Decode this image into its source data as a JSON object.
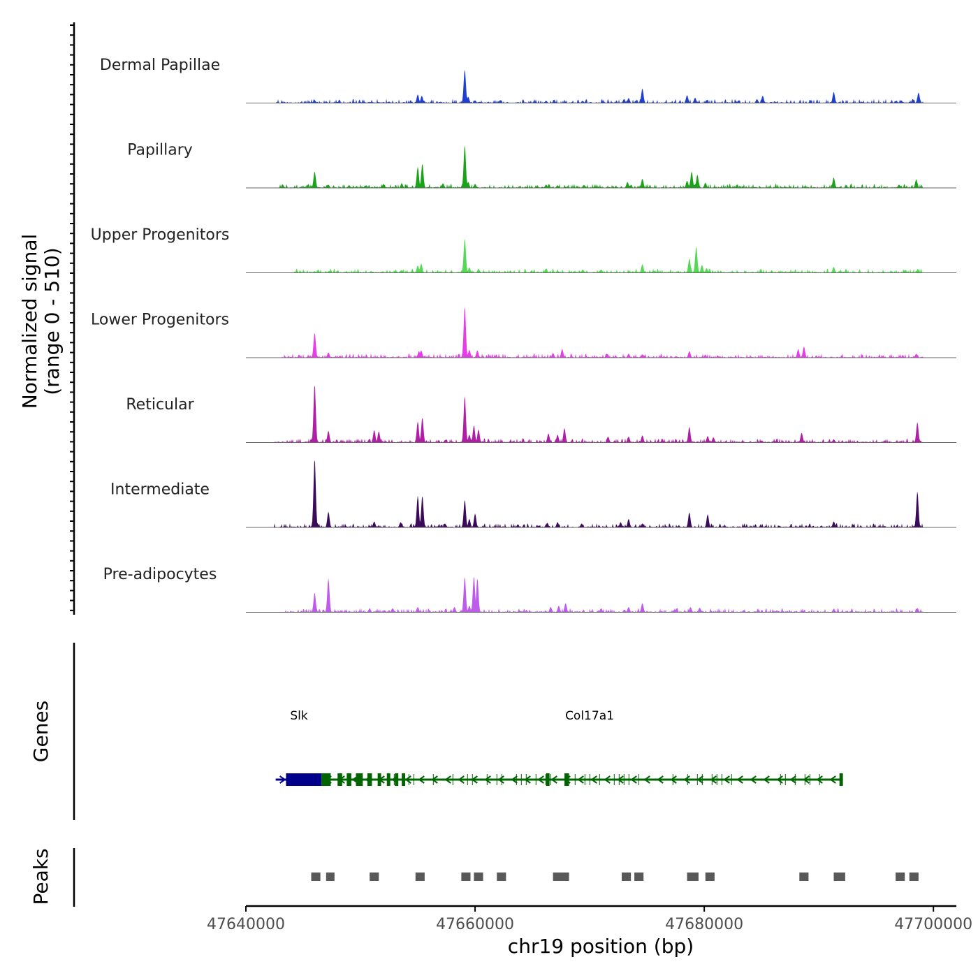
{
  "chart_data": {
    "type": "area",
    "title": "",
    "ylabel_line1": "Normalized signal",
    "ylabel_line2": "(range 0 - 510)",
    "y_range": [
      0,
      510
    ],
    "xlabel": "chr19 position (bp)",
    "x_range": [
      47640000,
      47702000
    ],
    "x_ticks": [
      47640000,
      47660000,
      47680000,
      47700000
    ],
    "x_tick_labels": [
      "47640000",
      "47660000",
      "47680000",
      "47700000"
    ],
    "series": [
      {
        "name": "Dermal Papillae",
        "color": "#1f3fcf",
        "peaks": [
          {
            "x": 47646000,
            "h": 40
          },
          {
            "x": 47650300,
            "h": 18
          },
          {
            "x": 47651000,
            "h": 20
          },
          {
            "x": 47652500,
            "h": 22
          },
          {
            "x": 47655000,
            "h": 130
          },
          {
            "x": 47655350,
            "h": 110
          },
          {
            "x": 47657000,
            "h": 20
          },
          {
            "x": 47659100,
            "h": 510
          },
          {
            "x": 47659400,
            "h": 95
          },
          {
            "x": 47660000,
            "h": 40
          },
          {
            "x": 47662200,
            "h": 45
          },
          {
            "x": 47666200,
            "h": 35
          },
          {
            "x": 47666900,
            "h": 45
          },
          {
            "x": 47669400,
            "h": 30
          },
          {
            "x": 47671200,
            "h": 22
          },
          {
            "x": 47673000,
            "h": 60
          },
          {
            "x": 47673400,
            "h": 75
          },
          {
            "x": 47674100,
            "h": 40
          },
          {
            "x": 47674600,
            "h": 220
          },
          {
            "x": 47678500,
            "h": 120
          },
          {
            "x": 47679200,
            "h": 80
          },
          {
            "x": 47680200,
            "h": 45
          },
          {
            "x": 47683000,
            "h": 40
          },
          {
            "x": 47684600,
            "h": 60
          },
          {
            "x": 47685100,
            "h": 110
          },
          {
            "x": 47689300,
            "h": 30
          },
          {
            "x": 47691300,
            "h": 170
          },
          {
            "x": 47697200,
            "h": 40
          },
          {
            "x": 47698200,
            "h": 60
          },
          {
            "x": 47698700,
            "h": 160
          }
        ],
        "extent": [
          47642600,
          47699100
        ]
      },
      {
        "name": "Papillary",
        "color": "#1aa31a",
        "peaks": [
          {
            "x": 47646000,
            "h": 250
          },
          {
            "x": 47647200,
            "h": 50
          },
          {
            "x": 47649000,
            "h": 40
          },
          {
            "x": 47650500,
            "h": 40
          },
          {
            "x": 47652000,
            "h": 60
          },
          {
            "x": 47653600,
            "h": 70
          },
          {
            "x": 47655000,
            "h": 320
          },
          {
            "x": 47655400,
            "h": 370
          },
          {
            "x": 47657200,
            "h": 70
          },
          {
            "x": 47659100,
            "h": 650
          },
          {
            "x": 47659400,
            "h": 90
          },
          {
            "x": 47660000,
            "h": 60
          },
          {
            "x": 47666200,
            "h": 50
          },
          {
            "x": 47667200,
            "h": 40
          },
          {
            "x": 47669500,
            "h": 45
          },
          {
            "x": 47673300,
            "h": 90
          },
          {
            "x": 47674600,
            "h": 140
          },
          {
            "x": 47678500,
            "h": 110
          },
          {
            "x": 47678900,
            "h": 250
          },
          {
            "x": 47679400,
            "h": 200
          },
          {
            "x": 47680100,
            "h": 80
          },
          {
            "x": 47683100,
            "h": 30
          },
          {
            "x": 47691300,
            "h": 160
          },
          {
            "x": 47697000,
            "h": 50
          },
          {
            "x": 47698500,
            "h": 130
          }
        ],
        "extent": [
          47642900,
          47699100
        ]
      },
      {
        "name": "Upper Progenitors",
        "color": "#55d855",
        "peaks": [
          {
            "x": 47646000,
            "h": 25
          },
          {
            "x": 47651000,
            "h": 20
          },
          {
            "x": 47653500,
            "h": 30
          },
          {
            "x": 47655000,
            "h": 110
          },
          {
            "x": 47655300,
            "h": 140
          },
          {
            "x": 47659100,
            "h": 520
          },
          {
            "x": 47659500,
            "h": 80
          },
          {
            "x": 47660300,
            "h": 60
          },
          {
            "x": 47666200,
            "h": 60
          },
          {
            "x": 47667200,
            "h": 30
          },
          {
            "x": 47669400,
            "h": 50
          },
          {
            "x": 47671000,
            "h": 50
          },
          {
            "x": 47674600,
            "h": 130
          },
          {
            "x": 47678700,
            "h": 220
          },
          {
            "x": 47679300,
            "h": 400
          },
          {
            "x": 47679800,
            "h": 120
          },
          {
            "x": 47680200,
            "h": 70
          },
          {
            "x": 47691300,
            "h": 90
          },
          {
            "x": 47697500,
            "h": 40
          },
          {
            "x": 47698600,
            "h": 30
          }
        ],
        "extent": [
          47644000,
          47699100
        ]
      },
      {
        "name": "Lower Progenitors",
        "color": "#e63ee6",
        "peaks": [
          {
            "x": 47646000,
            "h": 380
          },
          {
            "x": 47647200,
            "h": 80
          },
          {
            "x": 47655100,
            "h": 100
          },
          {
            "x": 47655300,
            "h": 110
          },
          {
            "x": 47659100,
            "h": 780
          },
          {
            "x": 47659500,
            "h": 120
          },
          {
            "x": 47660200,
            "h": 110
          },
          {
            "x": 47666800,
            "h": 70
          },
          {
            "x": 47667600,
            "h": 130
          },
          {
            "x": 47671500,
            "h": 60
          },
          {
            "x": 47673400,
            "h": 60
          },
          {
            "x": 47674600,
            "h": 50
          },
          {
            "x": 47678700,
            "h": 100
          },
          {
            "x": 47680100,
            "h": 40
          },
          {
            "x": 47688200,
            "h": 130
          },
          {
            "x": 47688700,
            "h": 170
          },
          {
            "x": 47698500,
            "h": 60
          }
        ],
        "extent": [
          47643100,
          47699100
        ]
      },
      {
        "name": "Reticular",
        "color": "#b01ea6",
        "peaks": [
          {
            "x": 47646000,
            "h": 890
          },
          {
            "x": 47647200,
            "h": 180
          },
          {
            "x": 47651200,
            "h": 190
          },
          {
            "x": 47651600,
            "h": 170
          },
          {
            "x": 47655000,
            "h": 320
          },
          {
            "x": 47655400,
            "h": 380
          },
          {
            "x": 47657400,
            "h": 40
          },
          {
            "x": 47659100,
            "h": 710
          },
          {
            "x": 47659500,
            "h": 120
          },
          {
            "x": 47659900,
            "h": 260
          },
          {
            "x": 47660300,
            "h": 200
          },
          {
            "x": 47666400,
            "h": 140
          },
          {
            "x": 47667200,
            "h": 120
          },
          {
            "x": 47667800,
            "h": 220
          },
          {
            "x": 47671600,
            "h": 90
          },
          {
            "x": 47673400,
            "h": 90
          },
          {
            "x": 47674600,
            "h": 110
          },
          {
            "x": 47678700,
            "h": 240
          },
          {
            "x": 47680300,
            "h": 100
          },
          {
            "x": 47680800,
            "h": 80
          },
          {
            "x": 47685000,
            "h": 30
          },
          {
            "x": 47688500,
            "h": 150
          },
          {
            "x": 47691300,
            "h": 50
          },
          {
            "x": 47698600,
            "h": 310
          }
        ],
        "extent": [
          47642400,
          47699100
        ]
      },
      {
        "name": "Intermediate",
        "color": "#3b0a5a",
        "peaks": [
          {
            "x": 47646000,
            "h": 1050
          },
          {
            "x": 47647200,
            "h": 240
          },
          {
            "x": 47651200,
            "h": 90
          },
          {
            "x": 47653500,
            "h": 80
          },
          {
            "x": 47655000,
            "h": 480
          },
          {
            "x": 47655400,
            "h": 480
          },
          {
            "x": 47659100,
            "h": 420
          },
          {
            "x": 47659500,
            "h": 130
          },
          {
            "x": 47660000,
            "h": 210
          },
          {
            "x": 47666300,
            "h": 70
          },
          {
            "x": 47667200,
            "h": 80
          },
          {
            "x": 47669300,
            "h": 60
          },
          {
            "x": 47672700,
            "h": 80
          },
          {
            "x": 47673400,
            "h": 130
          },
          {
            "x": 47674600,
            "h": 60
          },
          {
            "x": 47678700,
            "h": 230
          },
          {
            "x": 47680300,
            "h": 200
          },
          {
            "x": 47691300,
            "h": 90
          },
          {
            "x": 47698600,
            "h": 550
          }
        ],
        "extent": [
          47642400,
          47699100
        ]
      },
      {
        "name": "Pre-adipocytes",
        "color": "#bd5ceb",
        "peaks": [
          {
            "x": 47646000,
            "h": 300
          },
          {
            "x": 47647200,
            "h": 520
          },
          {
            "x": 47650800,
            "h": 60
          },
          {
            "x": 47652800,
            "h": 60
          },
          {
            "x": 47655000,
            "h": 80
          },
          {
            "x": 47658200,
            "h": 80
          },
          {
            "x": 47659100,
            "h": 540
          },
          {
            "x": 47659500,
            "h": 100
          },
          {
            "x": 47659900,
            "h": 550
          },
          {
            "x": 47660200,
            "h": 520
          },
          {
            "x": 47666600,
            "h": 80
          },
          {
            "x": 47667300,
            "h": 100
          },
          {
            "x": 47667900,
            "h": 140
          },
          {
            "x": 47671000,
            "h": 60
          },
          {
            "x": 47673400,
            "h": 80
          },
          {
            "x": 47674600,
            "h": 140
          },
          {
            "x": 47678800,
            "h": 80
          },
          {
            "x": 47679600,
            "h": 70
          },
          {
            "x": 47691300,
            "h": 50
          },
          {
            "x": 47698600,
            "h": 60
          }
        ],
        "extent": [
          47643000,
          47699100
        ]
      }
    ],
    "genes_track_label": "Genes",
    "genes": [
      {
        "name": "Slk",
        "strand": "+",
        "color": "#00008b",
        "start": 47642600,
        "end": 47645400,
        "exons": [
          [
            47643500,
            47646600
          ]
        ]
      },
      {
        "name": "Col17a1",
        "strand": "-",
        "color": "#006400",
        "start": 47646600,
        "end": 47692100,
        "exons": [
          [
            47646600,
            47647400
          ],
          [
            47648000,
            47648400
          ],
          [
            47648800,
            47649200
          ],
          [
            47649600,
            47650200
          ],
          [
            47650600,
            47651000
          ],
          [
            47651500,
            47651800
          ],
          [
            47652300,
            47652600
          ],
          [
            47653000,
            47653300
          ],
          [
            47653600,
            47653900
          ],
          [
            47666200,
            47666500
          ],
          [
            47667800,
            47668200
          ],
          [
            47691800,
            47692100
          ]
        ]
      }
    ],
    "peaks_track_label": "Peaks",
    "peak_regions": [
      [
        47645700,
        47646500
      ],
      [
        47647000,
        47647700
      ],
      [
        47650800,
        47651600
      ],
      [
        47654800,
        47655600
      ],
      [
        47658800,
        47659600
      ],
      [
        47659900,
        47660700
      ],
      [
        47661900,
        47662700
      ],
      [
        47666800,
        47668200
      ],
      [
        47672800,
        47673600
      ],
      [
        47673900,
        47674700
      ],
      [
        47678500,
        47679500
      ],
      [
        47680100,
        47680900
      ],
      [
        47688300,
        47689100
      ],
      [
        47691300,
        47692300
      ],
      [
        47696700,
        47697500
      ],
      [
        47697900,
        47698700
      ]
    ]
  }
}
